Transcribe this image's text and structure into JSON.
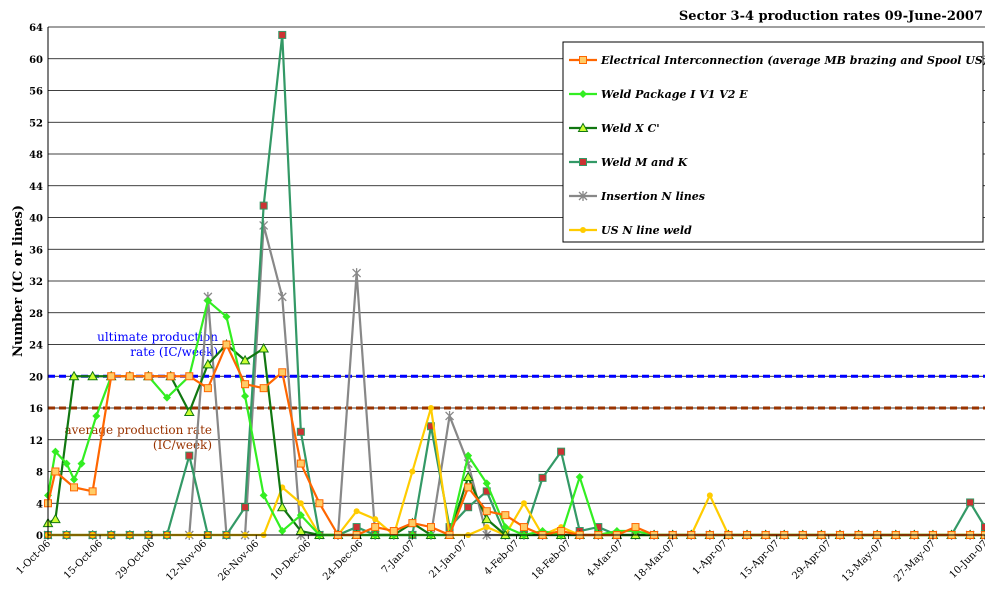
{
  "chart_data": {
    "type": "line",
    "title": "Sector 3-4 production rates 09-June-2007",
    "ylabel": "Number (IC or lines)",
    "xlabel": "",
    "ylim": [
      0,
      64
    ],
    "yticks": [
      0,
      4,
      8,
      12,
      16,
      20,
      24,
      28,
      32,
      36,
      40,
      44,
      48,
      52,
      56,
      60,
      64
    ],
    "x_tick_labels": [
      "1-Oct-06",
      "15-Oct-06",
      "29-Oct-06",
      "12-Nov-06",
      "26-Nov-06",
      "10-Dec-06",
      "24-Dec-06",
      "7-Jan-07",
      "21-Jan-07",
      "4-Feb-07",
      "18-Feb-07",
      "4-Mar-07",
      "18-Mar-07",
      "1-Apr-07",
      "15-Apr-07",
      "29-Apr-07",
      "13-May-07",
      "27-May-07",
      "10-Jun-07"
    ],
    "x_range_days": [
      0,
      252
    ],
    "grid": "horizontal",
    "legend_position": "top-right",
    "series": [
      {
        "name": "Electrical Interconnection (average MB brazing and Spool US)",
        "color": "#ff6600",
        "marker": "square",
        "x": [
          0,
          2,
          7,
          12,
          17,
          22,
          27,
          33,
          38,
          43,
          48,
          53,
          58,
          63,
          68,
          73,
          78,
          83,
          88,
          93,
          98,
          103,
          108,
          113,
          118,
          123,
          128,
          133,
          138,
          143,
          148,
          153,
          158,
          163,
          168,
          173,
          178,
          183,
          188,
          193,
          198,
          203,
          208,
          213,
          218,
          223,
          228,
          233,
          238,
          243,
          248,
          252
        ],
        "y": [
          4,
          8,
          6,
          5.5,
          20,
          20,
          20,
          20,
          20,
          18.5,
          24,
          19,
          18.5,
          20.5,
          9,
          4,
          0,
          0,
          1,
          0.5,
          1.5,
          1,
          0,
          6,
          3,
          2.5,
          1,
          0,
          0.5,
          0,
          0,
          0,
          1,
          0,
          0,
          0,
          0,
          0,
          0,
          0,
          0,
          0,
          0,
          0,
          0,
          0,
          0,
          0,
          0,
          0,
          0,
          0
        ]
      },
      {
        "name": "Weld Package I V1 V2 E",
        "color": "#33ee22",
        "marker": "diamond",
        "x": [
          0,
          2,
          5,
          7,
          9,
          13,
          17,
          22,
          27,
          32,
          38,
          43,
          48,
          53,
          58,
          63,
          68,
          73,
          78,
          83,
          88,
          93,
          98,
          103,
          108,
          113,
          118,
          123,
          128,
          133,
          138,
          143,
          148,
          153,
          158,
          163,
          168,
          173,
          178,
          183,
          188,
          193,
          198,
          203,
          208,
          213,
          218,
          223,
          228,
          233,
          238,
          243,
          248,
          252
        ],
        "y": [
          5,
          10.5,
          9,
          7,
          9,
          15,
          20,
          20,
          20,
          17.3,
          20,
          29.5,
          27.5,
          17.5,
          5,
          0.5,
          2.5,
          0,
          0,
          0,
          0,
          0,
          0,
          0,
          0,
          10,
          6.5,
          1,
          0,
          0.5,
          0,
          7.3,
          0,
          0.5,
          0.5,
          0,
          0,
          0,
          0,
          0,
          0,
          0,
          0,
          0,
          0,
          0,
          0,
          0,
          0,
          0,
          0,
          0,
          0,
          0
        ]
      },
      {
        "name": "Weld X C'",
        "color": "#117711",
        "marker": "triangle",
        "x": [
          0,
          2,
          7,
          12,
          17,
          22,
          27,
          33,
          38,
          43,
          48,
          53,
          58,
          63,
          68,
          73,
          78,
          83,
          88,
          93,
          98,
          103,
          108,
          113,
          118,
          123,
          128,
          133,
          138,
          143,
          148,
          153,
          158,
          163,
          168,
          173,
          178,
          183,
          188,
          193,
          198,
          203,
          208,
          213,
          218,
          223,
          228,
          233,
          238,
          243,
          248,
          252
        ],
        "y": [
          1.5,
          2,
          20,
          20,
          20,
          20,
          20,
          20,
          15.5,
          21.5,
          24,
          22,
          23.5,
          3.5,
          0.5,
          0,
          0,
          0,
          0,
          0,
          1.5,
          0,
          0,
          7.3,
          2,
          0,
          0,
          0,
          0,
          0,
          0,
          0,
          0,
          0,
          0,
          0,
          0,
          0,
          0,
          0,
          0,
          0,
          0,
          0,
          0,
          0,
          0,
          0,
          0,
          0,
          0,
          0
        ]
      },
      {
        "name": "Weld M and K",
        "color": "#339966",
        "marker": "square",
        "x": [
          0,
          5,
          12,
          17,
          22,
          27,
          32,
          38,
          43,
          48,
          53,
          58,
          63,
          68,
          73,
          78,
          83,
          88,
          93,
          98,
          103,
          108,
          113,
          118,
          123,
          128,
          133,
          138,
          143,
          148,
          153,
          158,
          163,
          168,
          173,
          178,
          183,
          188,
          193,
          198,
          203,
          208,
          213,
          218,
          223,
          228,
          233,
          238,
          243,
          248,
          252
        ],
        "y": [
          0,
          0,
          0,
          0,
          0,
          0,
          0,
          10,
          0,
          0,
          3.5,
          41.5,
          63,
          13,
          0,
          0,
          1,
          0,
          0,
          0,
          13.7,
          1,
          3.5,
          5.5,
          0,
          0,
          7.2,
          10.5,
          0.5,
          1,
          0,
          0,
          0,
          0,
          0,
          0,
          0,
          0,
          0,
          0,
          0,
          0,
          0,
          0,
          0,
          0,
          0,
          0,
          0,
          4.1,
          1
        ]
      },
      {
        "name": "Insertion N lines",
        "color": "#888888",
        "marker": "star",
        "x": [
          0,
          5,
          12,
          17,
          22,
          27,
          32,
          38,
          43,
          48,
          53,
          58,
          63,
          68,
          73,
          78,
          83,
          88,
          93,
          98,
          103,
          108,
          113,
          118,
          123,
          128,
          133,
          138,
          143,
          148,
          153,
          158,
          163,
          168,
          173,
          178,
          183,
          188,
          193,
          198,
          203,
          208,
          213,
          218,
          223,
          228,
          233,
          238,
          243,
          248,
          252
        ],
        "y": [
          0,
          0,
          0,
          0,
          0,
          0,
          0,
          0,
          30,
          0,
          0,
          39,
          30,
          0,
          0,
          0,
          33,
          0,
          0,
          0,
          0,
          15,
          9,
          0,
          0,
          0,
          0,
          0,
          0,
          0,
          0,
          0,
          0,
          0,
          0,
          0,
          0,
          0,
          0,
          0,
          0,
          0,
          0,
          0,
          0,
          0,
          0,
          0,
          0,
          0,
          0
        ]
      },
      {
        "name": "US N line weld",
        "color": "#ffcc00",
        "marker": "circle",
        "x": [
          0,
          5,
          12,
          17,
          22,
          27,
          32,
          38,
          43,
          48,
          53,
          58,
          63,
          68,
          73,
          78,
          83,
          88,
          93,
          98,
          103,
          108,
          113,
          118,
          123,
          128,
          133,
          138,
          143,
          148,
          153,
          158,
          163,
          168,
          173,
          178,
          183,
          188,
          193,
          198,
          203,
          208,
          213,
          218,
          223,
          228,
          233,
          238,
          243,
          248,
          252
        ],
        "y": [
          0,
          0,
          0,
          0,
          0,
          0,
          0,
          0,
          0,
          0,
          0,
          0,
          6,
          4,
          0,
          0,
          3,
          2,
          0,
          8,
          16,
          0,
          0,
          1,
          0,
          4,
          0,
          1,
          0,
          0,
          0,
          0,
          0,
          0,
          0,
          5,
          0,
          0,
          0,
          0,
          0,
          0,
          0,
          0,
          0,
          0,
          0,
          0,
          0,
          0,
          0
        ]
      }
    ],
    "reference_lines": [
      {
        "name": "ultimate production rate (IC/week)",
        "value": 20,
        "color": "#0000ff",
        "label": [
          "ultimate production",
          "rate (IC/week)"
        ]
      },
      {
        "name": "average production rate (IC/week)",
        "value": 16,
        "color": "#993300",
        "label": [
          "average production rate",
          "(IC/week)"
        ]
      }
    ]
  }
}
